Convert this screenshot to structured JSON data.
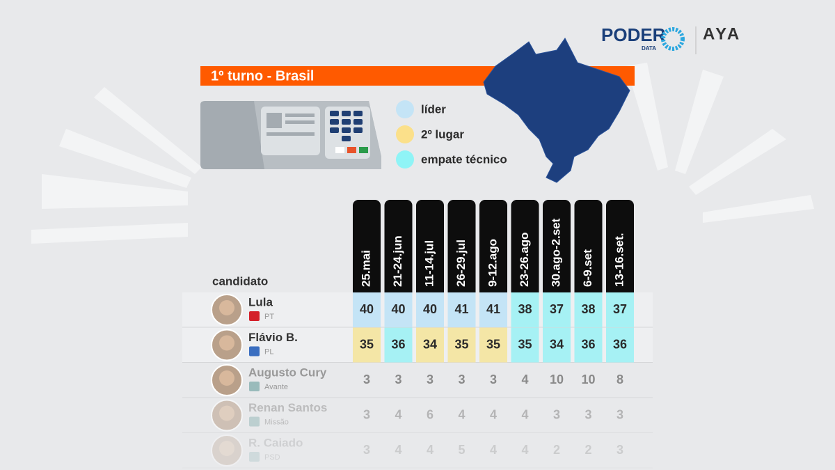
{
  "header": {
    "brand": "PODER",
    "brand_sub": "DATA",
    "partner": "AYA"
  },
  "title": "1º turno - Brasil",
  "legend": [
    {
      "label": "líder",
      "color": "#c4e4f6"
    },
    {
      "label": "2º lugar",
      "color": "#fbe08a"
    },
    {
      "label": "empate técnico",
      "color": "#8ff4f6"
    }
  ],
  "table": {
    "column_header": "candidato",
    "dates": [
      "25.mai",
      "21-24.jun",
      "11-14.jul",
      "26-29.jul",
      "9-12.ago",
      "23-26.ago",
      "30.ago-2.set",
      "6-9.set",
      "13-16.set."
    ],
    "rows": [
      {
        "name": "Lula",
        "party": "PT",
        "values": [
          40,
          40,
          40,
          41,
          41,
          38,
          37,
          38,
          37
        ],
        "cell_colors": [
          "#c4e4f6",
          "#c4e4f6",
          "#c4e4f6",
          "#c4e4f6",
          "#c4e4f6",
          "#a6f1f4",
          "#a6f1f4",
          "#a6f1f4",
          "#a6f1f4"
        ]
      },
      {
        "name": "Flávio B.",
        "party": "PL",
        "values": [
          35,
          36,
          34,
          35,
          35,
          35,
          34,
          36,
          36
        ],
        "cell_colors": [
          "#f4e6a6",
          "#a6f1f4",
          "#f4e6a6",
          "#f4e6a6",
          "#f4e6a6",
          "#a6f1f4",
          "#a6f1f4",
          "#a6f1f4",
          "#a6f1f4"
        ]
      },
      {
        "name": "Augusto Cury",
        "party": "Avante",
        "values": [
          3,
          3,
          3,
          3,
          3,
          4,
          10,
          10,
          8
        ]
      },
      {
        "name": "Renan Santos",
        "party": "Missão",
        "values": [
          3,
          4,
          6,
          4,
          4,
          4,
          3,
          3,
          3
        ]
      },
      {
        "name": "R. Caiado",
        "party": "PSD",
        "values": [
          3,
          4,
          4,
          5,
          4,
          4,
          2,
          2,
          3
        ]
      }
    ]
  }
}
